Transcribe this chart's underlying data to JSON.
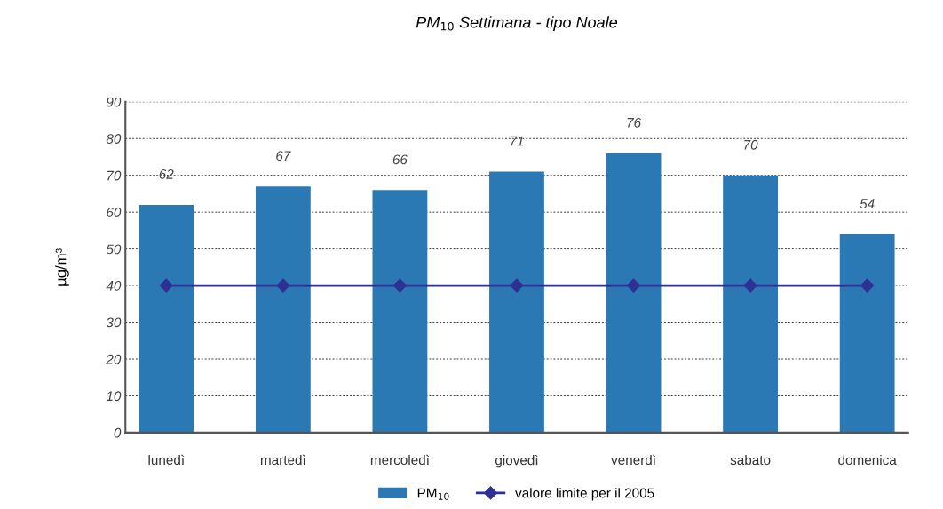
{
  "chart_data": {
    "type": "bar",
    "title": "PM$_{10}$ Settimana - tipo Noale",
    "ylabel": "µg/m³",
    "categories": [
      "lunedì",
      "martedì",
      "mercoledì",
      "giovedì",
      "venerdì",
      "sabato",
      "domenica"
    ],
    "series": [
      {
        "name": "PM$_{10}$",
        "color": "#2a78b4",
        "values": [
          62,
          67,
          66,
          71,
          76,
          70,
          54
        ],
        "value_labels": [
          "62",
          "67",
          "66",
          "71",
          "76",
          "70",
          "54"
        ]
      },
      {
        "name": "valore limite per il 2005",
        "type": "line",
        "color": "#2e3192",
        "marker": "diamond",
        "line_style": "solid",
        "values": [
          40,
          40,
          40,
          40,
          40,
          40,
          40
        ]
      }
    ],
    "ylim": [
      0,
      90
    ],
    "yticks": [
      0,
      10,
      20,
      30,
      40,
      50,
      60,
      70,
      80,
      90
    ],
    "grid": "y",
    "legend": "bottom"
  }
}
